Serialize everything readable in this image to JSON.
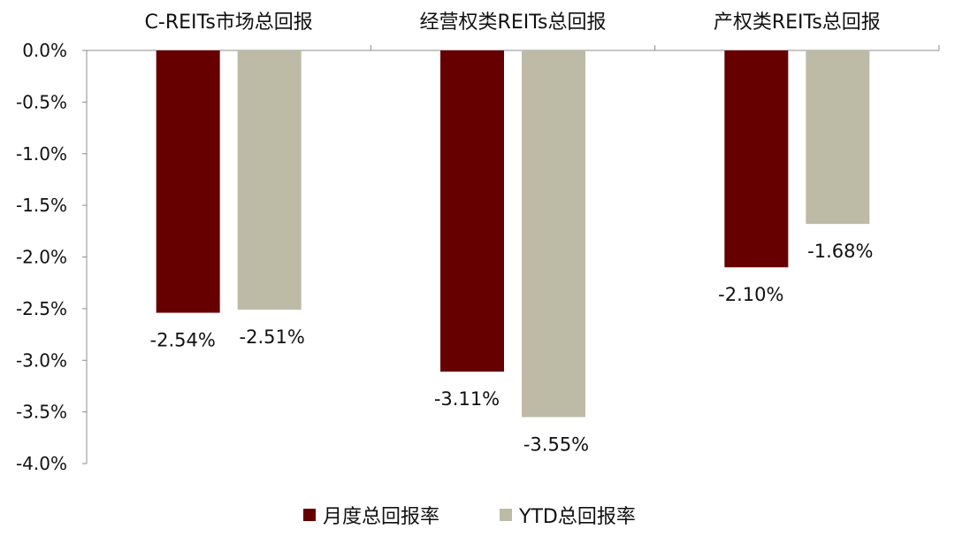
{
  "chart_data": {
    "type": "bar",
    "title": "",
    "xlabel": "",
    "ylabel": "",
    "categories": [
      "C-REITs市场总回报",
      "经营权类REITs总回报",
      "产权类REITs总回报"
    ],
    "series": [
      {
        "name": "月度总回报率",
        "values": [
          -2.54,
          -3.11,
          -2.1
        ],
        "color": "#660000"
      },
      {
        "name": "YTD总回报率",
        "values": [
          -2.51,
          -3.55,
          -1.68
        ],
        "color": "#BDBBA6"
      }
    ],
    "data_labels": [
      [
        "-2.54%",
        "-3.11%",
        "-2.10%"
      ],
      [
        "-2.51%",
        "-3.55%",
        "-1.68%"
      ]
    ],
    "yticks": [
      "0.0%",
      "-0.5%",
      "-1.0%",
      "-1.5%",
      "-2.0%",
      "-2.5%",
      "-3.0%",
      "-3.5%",
      "-4.0%"
    ],
    "ylim": [
      -4.0,
      0.0
    ],
    "category_labels_position": "top",
    "legend_position": "bottom-center",
    "grid": false
  }
}
